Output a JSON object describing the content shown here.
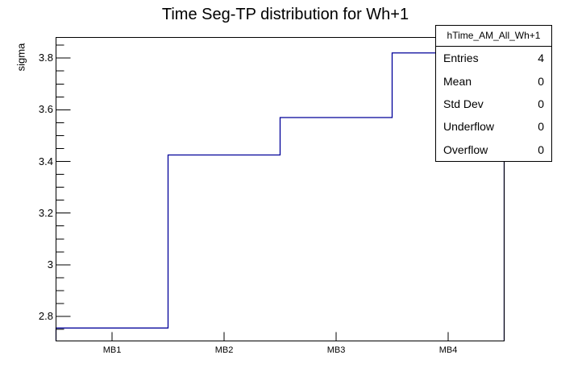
{
  "chart_data": {
    "type": "bar",
    "style": "step-outline-histogram",
    "title": "Time Seg-TP distribution for Wh+1",
    "xlabel": "",
    "ylabel": "sigma",
    "categories": [
      "MB1",
      "MB2",
      "MB3",
      "MB4"
    ],
    "values": [
      2.755,
      3.425,
      3.57,
      3.82
    ],
    "ylim": [
      2.705,
      3.88
    ],
    "y_ticks": [
      {
        "value": 2.8,
        "label": "2.8"
      },
      {
        "value": 3.0,
        "label": "3"
      },
      {
        "value": 3.2,
        "label": "3.2"
      },
      {
        "value": 3.4,
        "label": "3.4"
      },
      {
        "value": 3.6,
        "label": "3.6"
      },
      {
        "value": 3.8,
        "label": "3.8"
      }
    ],
    "y_minor_ticks": [
      2.75,
      2.85,
      2.9,
      2.95,
      3.05,
      3.1,
      3.15,
      3.25,
      3.3,
      3.35,
      3.45,
      3.5,
      3.55,
      3.65,
      3.7,
      3.75,
      3.85
    ],
    "grid": false,
    "legend_position": "none",
    "colors": {
      "line": "#000099",
      "frame": "#000000",
      "text": "#000000",
      "background": "#ffffff"
    }
  },
  "stats_box": {
    "header": "hTime_AM_All_Wh+1",
    "rows": [
      {
        "label": "Entries",
        "value": "4"
      },
      {
        "label": "Mean",
        "value": "0"
      },
      {
        "label": "Std Dev",
        "value": "0"
      },
      {
        "label": "Underflow",
        "value": "0"
      },
      {
        "label": "Overflow",
        "value": "0"
      }
    ]
  }
}
